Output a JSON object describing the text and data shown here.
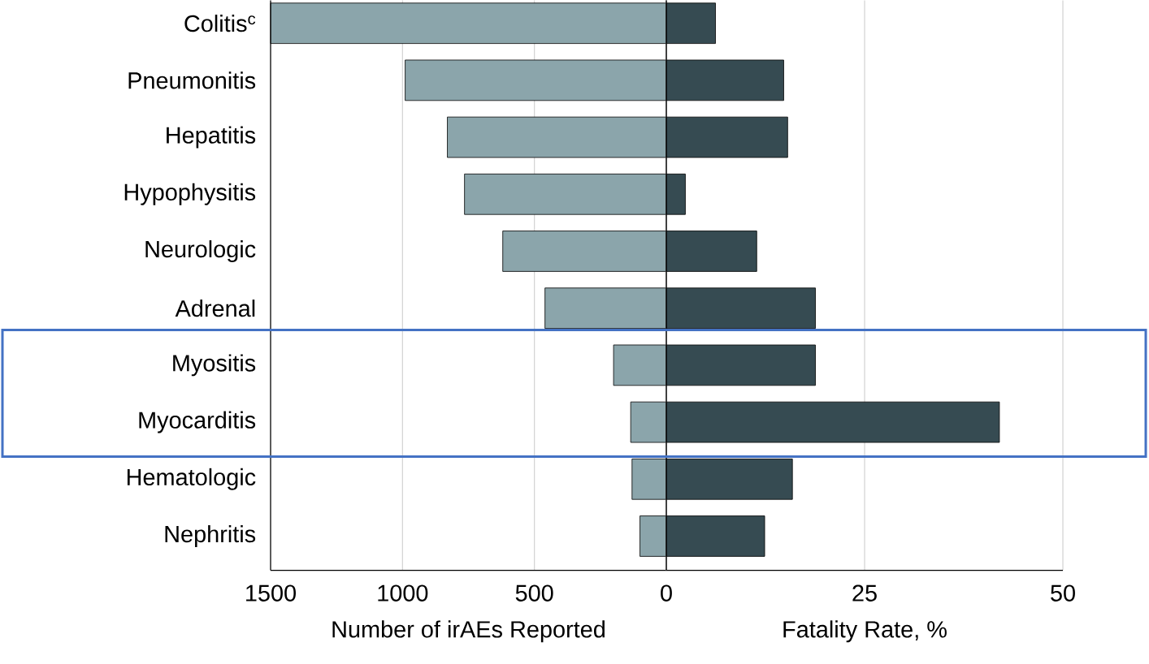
{
  "chart_data": [
    {
      "type": "bar",
      "orientation": "horizontal",
      "xlabel": "Number of irAEs Reported",
      "categories": [
        "Colitis$^{c}$",
        "Pneumonitis",
        "Hepatitis",
        "Hypophysitis",
        "Neurologic",
        "Adrenal",
        "Myositis",
        "Myocarditis",
        "Hematologic",
        "Nephritis"
      ],
      "values": [
        1500,
        990,
        830,
        765,
        620,
        460,
        200,
        135,
        130,
        100
      ],
      "color": "#8ba5ab",
      "xlim": [
        1500,
        0
      ],
      "xticks": [
        1500,
        1000,
        500,
        0
      ],
      "grid": "x"
    },
    {
      "type": "bar",
      "orientation": "horizontal",
      "xlabel": "Fatality Rate, %",
      "values": [
        6.2,
        14.8,
        15.3,
        2.4,
        11.4,
        18.8,
        18.8,
        42.0,
        15.9,
        12.4
      ],
      "color": "#364b52",
      "xlim": [
        0,
        50
      ],
      "xticks": [
        {
          "value": 0,
          "label": null
        },
        25,
        50
      ],
      "grid": "x",
      "tick_labels": "x"
    }
  ]
}
